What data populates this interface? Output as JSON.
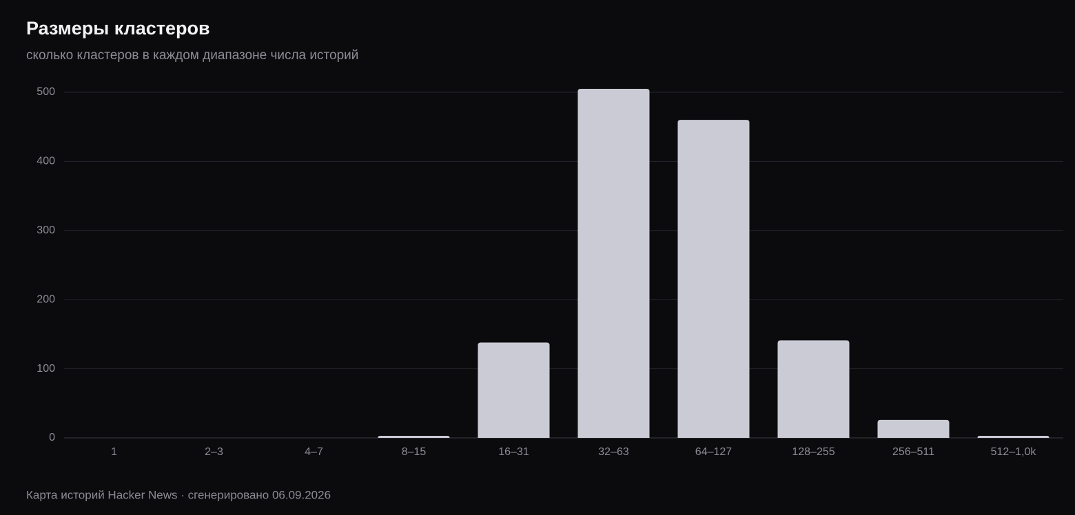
{
  "chart_data": {
    "type": "bar",
    "title": "Размеры кластеров",
    "subtitle": "сколько кластеров в каждом диапазоне числа историй",
    "categories": [
      "1",
      "2–3",
      "4–7",
      "8–15",
      "16–31",
      "32–63",
      "64–127",
      "128–255",
      "256–511",
      "512–1,0k"
    ],
    "values": [
      0,
      0,
      0,
      3,
      138,
      505,
      460,
      141,
      26,
      3
    ],
    "color": "#cbcbd6",
    "ylim": [
      0,
      500
    ],
    "yticks": [
      0,
      100,
      200,
      300,
      400,
      500
    ],
    "grid": true,
    "footer": "Карта историй Hacker News · сгенерировано 06.09.2026"
  }
}
